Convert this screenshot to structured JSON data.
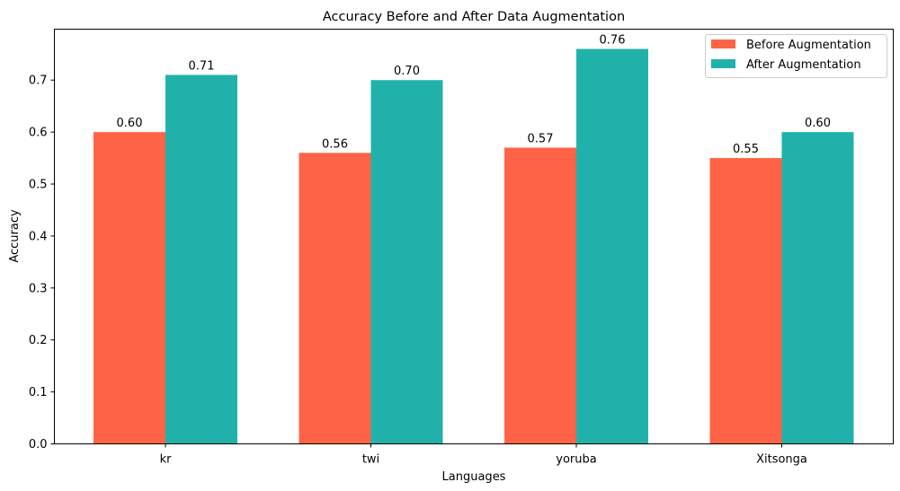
{
  "chart_data": {
    "type": "bar",
    "title": "Accuracy Before and After Data Augmentation",
    "xlabel": "Languages",
    "ylabel": "Accuracy",
    "categories": [
      "kr",
      "twi",
      "yoruba",
      "Xitsonga"
    ],
    "series": [
      {
        "name": "Before Augmentation",
        "values": [
          0.6,
          0.56,
          0.57,
          0.55
        ],
        "labels": [
          "0.60",
          "0.56",
          "0.57",
          "0.55"
        ],
        "color": "#ff6347"
      },
      {
        "name": "After Augmentation",
        "values": [
          0.71,
          0.7,
          0.76,
          0.6
        ],
        "labels": [
          "0.71",
          "0.70",
          "0.76",
          "0.60"
        ],
        "color": "#20b2aa"
      }
    ],
    "ylim": [
      0,
      0.798
    ],
    "yticks": [
      0.0,
      0.1,
      0.2,
      0.3,
      0.4,
      0.5,
      0.6,
      0.7
    ],
    "ytick_labels": [
      "0.0",
      "0.1",
      "0.2",
      "0.3",
      "0.4",
      "0.5",
      "0.6",
      "0.7"
    ],
    "grid": false,
    "legend_position": "top-right"
  }
}
